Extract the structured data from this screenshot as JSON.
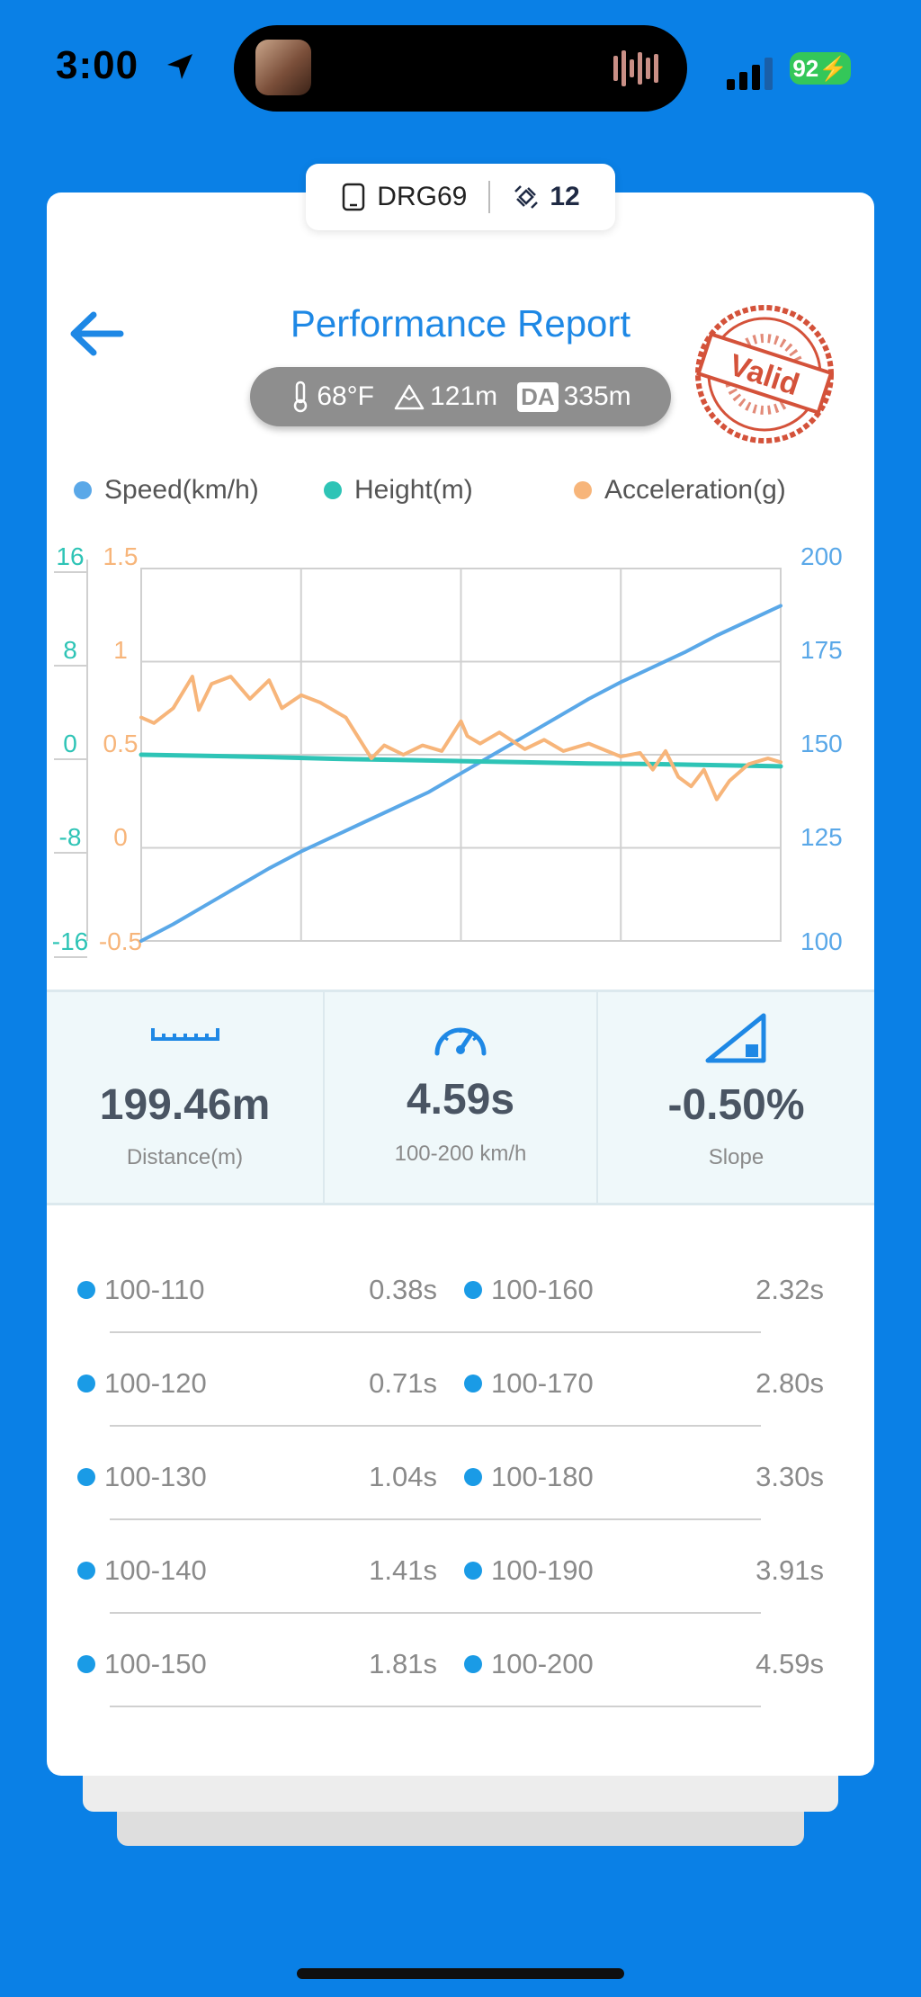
{
  "status": {
    "time": "3:00",
    "battery": "92"
  },
  "device": {
    "name": "DRG69",
    "satellites": "12"
  },
  "header": {
    "title": "Performance Report",
    "stamp": "Valid"
  },
  "conditions": {
    "temperature": "68°F",
    "altitude": "121m",
    "da_label": "DA",
    "density_altitude": "335m"
  },
  "legend": [
    {
      "label": "Speed(km/h)",
      "color": "#5AA8E8"
    },
    {
      "label": "Height(m)",
      "color": "#2EC4B6"
    },
    {
      "label": "Acceleration(g)",
      "color": "#F7B57A"
    }
  ],
  "chart_data": {
    "type": "line",
    "axes": {
      "height_ticks": [
        "16",
        "8",
        "0",
        "-8",
        "-16"
      ],
      "accel_ticks": [
        "1.5",
        "1",
        "0.5",
        "0",
        "-0.5"
      ],
      "speed_ticks": [
        "200",
        "175",
        "150",
        "125",
        "100"
      ]
    },
    "series": [
      {
        "name": "Speed(km/h)",
        "axis": "right",
        "ylim": [
          100,
          200
        ],
        "color": "#5AA8E8",
        "t": [
          0,
          0.05,
          0.1,
          0.15,
          0.2,
          0.25,
          0.3,
          0.35,
          0.4,
          0.45,
          0.5,
          0.55,
          0.6,
          0.65,
          0.7,
          0.75,
          0.8,
          0.85,
          0.9,
          0.95,
          1.0
        ],
        "values": [
          100,
          104.5,
          109.5,
          114.5,
          119.5,
          124,
          128,
          132,
          136,
          140,
          145,
          150,
          155,
          160,
          165,
          169.5,
          173.5,
          177.5,
          182,
          186,
          190
        ]
      },
      {
        "name": "Height(m)",
        "axis": "left-outer",
        "ylim": [
          -16,
          16
        ],
        "color": "#2EC4B6",
        "t": [
          0,
          0.1,
          0.2,
          0.3,
          0.4,
          0.5,
          0.6,
          0.7,
          0.8,
          0.9,
          1.0
        ],
        "values": [
          0,
          -0.1,
          -0.2,
          -0.35,
          -0.45,
          -0.55,
          -0.65,
          -0.75,
          -0.8,
          -0.9,
          -1.0
        ]
      },
      {
        "name": "Acceleration(g)",
        "axis": "left-inner",
        "ylim": [
          -0.5,
          1.5
        ],
        "color": "#F7B57A",
        "t": [
          0,
          0.02,
          0.05,
          0.08,
          0.09,
          0.11,
          0.14,
          0.17,
          0.2,
          0.22,
          0.25,
          0.28,
          0.32,
          0.36,
          0.38,
          0.41,
          0.44,
          0.47,
          0.5,
          0.51,
          0.53,
          0.56,
          0.6,
          0.63,
          0.66,
          0.7,
          0.75,
          0.78,
          0.8,
          0.82,
          0.84,
          0.86,
          0.88,
          0.9,
          0.92,
          0.95,
          0.98,
          1.0
        ],
        "values": [
          0.7,
          0.67,
          0.75,
          0.92,
          0.74,
          0.88,
          0.92,
          0.8,
          0.9,
          0.75,
          0.82,
          0.78,
          0.7,
          0.48,
          0.55,
          0.5,
          0.55,
          0.52,
          0.68,
          0.6,
          0.56,
          0.62,
          0.53,
          0.58,
          0.52,
          0.56,
          0.49,
          0.51,
          0.42,
          0.52,
          0.38,
          0.33,
          0.42,
          0.26,
          0.36,
          0.45,
          0.48,
          0.46
        ]
      }
    ]
  },
  "stats": [
    {
      "value": "199.46m",
      "label": "Distance(m)"
    },
    {
      "value": "4.59s",
      "label": "100-200 km/h"
    },
    {
      "value": "-0.50%",
      "label": "Slope"
    }
  ],
  "splits_left": [
    {
      "range": "100-110",
      "time": "0.38s"
    },
    {
      "range": "100-120",
      "time": "0.71s"
    },
    {
      "range": "100-130",
      "time": "1.04s"
    },
    {
      "range": "100-140",
      "time": "1.41s"
    },
    {
      "range": "100-150",
      "time": "1.81s"
    }
  ],
  "splits_right": [
    {
      "range": "100-160",
      "time": "2.32s"
    },
    {
      "range": "100-170",
      "time": "2.80s"
    },
    {
      "range": "100-180",
      "time": "3.30s"
    },
    {
      "range": "100-190",
      "time": "3.91s"
    },
    {
      "range": "100-200",
      "time": "4.59s"
    }
  ]
}
